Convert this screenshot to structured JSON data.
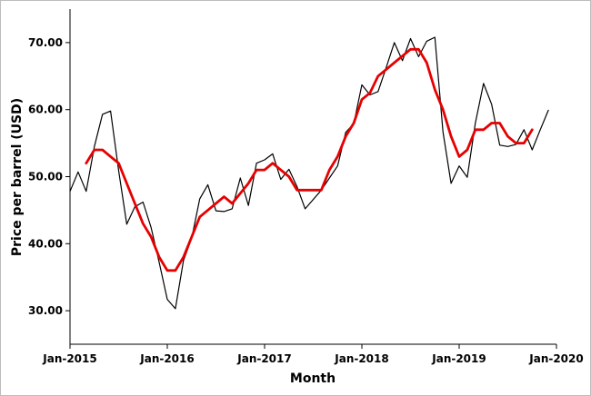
{
  "chart_data": {
    "type": "line",
    "title": "",
    "xlabel": "Month",
    "ylabel": "Price per barrel (USD)",
    "x_tick_labels": [
      "Jan-2015",
      "Jan-2016",
      "Jan-2017",
      "Jan-2018",
      "Jan-2019",
      "Jan-2020"
    ],
    "y_tick_labels": [
      "30.00",
      "40.00",
      "50.00",
      "60.00",
      "70.00"
    ],
    "y_ticks": [
      30,
      40,
      50,
      60,
      70
    ],
    "xlim": [
      "2015-01",
      "2020-01"
    ],
    "ylim": [
      25,
      75
    ],
    "grid": false,
    "legend": "none",
    "series": [
      {
        "color": "#000000",
        "x": [
          "2015-01",
          "2015-02",
          "2015-03",
          "2015-04",
          "2015-05",
          "2015-06",
          "2015-07",
          "2015-08",
          "2015-09",
          "2015-10",
          "2015-11",
          "2015-12",
          "2016-01",
          "2016-02",
          "2016-03",
          "2016-04",
          "2016-05",
          "2016-06",
          "2016-07",
          "2016-08",
          "2016-09",
          "2016-10",
          "2016-11",
          "2016-12",
          "2017-01",
          "2017-02",
          "2017-03",
          "2017-04",
          "2017-05",
          "2017-06",
          "2017-07",
          "2017-08",
          "2017-09",
          "2017-10",
          "2017-11",
          "2017-12",
          "2018-01",
          "2018-02",
          "2018-03",
          "2018-04",
          "2018-05",
          "2018-06",
          "2018-07",
          "2018-08",
          "2018-09",
          "2018-10",
          "2018-11",
          "2018-12",
          "2019-01",
          "2019-02",
          "2019-03",
          "2019-04",
          "2019-05",
          "2019-06",
          "2019-07",
          "2019-08",
          "2019-09",
          "2019-10",
          "2019-11",
          "2019-12"
        ],
        "values": [
          47.8,
          50.7,
          47.8,
          54.5,
          59.3,
          59.8,
          50.9,
          42.9,
          45.5,
          46.2,
          42.4,
          37.2,
          31.7,
          30.3,
          37.5,
          40.8,
          46.7,
          48.8,
          44.9,
          44.8,
          45.2,
          49.8,
          45.7,
          52.0,
          52.5,
          53.4,
          49.6,
          51.1,
          48.5,
          45.2,
          46.6,
          48.0,
          49.8,
          51.6,
          56.6,
          57.9,
          63.7,
          62.2,
          62.7,
          66.3,
          70.0,
          67.3,
          70.6,
          67.9,
          70.2,
          70.8,
          56.7,
          49.0,
          51.6,
          49.9,
          58.0,
          63.9,
          60.8,
          54.7,
          54.5,
          54.8,
          57.0,
          54.0,
          57.0,
          59.9
        ]
      },
      {
        "color": "#e60000",
        "x": [
          "2015-03",
          "2015-04",
          "2015-05",
          "2015-06",
          "2015-07",
          "2015-08",
          "2015-09",
          "2015-10",
          "2015-11",
          "2015-12",
          "2016-01",
          "2016-02",
          "2016-03",
          "2016-04",
          "2016-05",
          "2016-06",
          "2016-07",
          "2016-08",
          "2016-09",
          "2016-10",
          "2016-11",
          "2016-12",
          "2017-01",
          "2017-02",
          "2017-03",
          "2017-04",
          "2017-05",
          "2017-06",
          "2017-07",
          "2017-08",
          "2017-09",
          "2017-10",
          "2017-11",
          "2017-12",
          "2018-01",
          "2018-02",
          "2018-03",
          "2018-04",
          "2018-05",
          "2018-06",
          "2018-07",
          "2018-08",
          "2018-09",
          "2018-10",
          "2018-11",
          "2018-12",
          "2019-01",
          "2019-02",
          "2019-03",
          "2019-04",
          "2019-05",
          "2019-06",
          "2019-07",
          "2019-08",
          "2019-09",
          "2019-10"
        ],
        "values": [
          52,
          54,
          54,
          53,
          52,
          49,
          46,
          43,
          41,
          38,
          36,
          36,
          38,
          41,
          44,
          45,
          46,
          47,
          46,
          47.5,
          49,
          51,
          51,
          52,
          51,
          50,
          48,
          48,
          48,
          48,
          51,
          53,
          56,
          58,
          61.5,
          62.5,
          65,
          66,
          67,
          68,
          69,
          69,
          67,
          63,
          60,
          56,
          53,
          54,
          57,
          57,
          58,
          58,
          56,
          55,
          55,
          57
        ]
      }
    ]
  }
}
